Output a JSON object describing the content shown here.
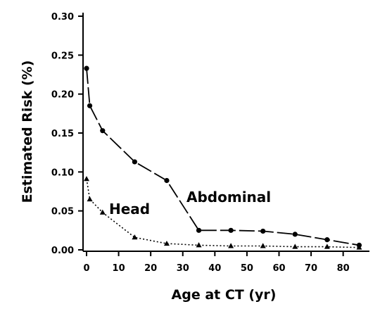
{
  "chart_data": {
    "type": "line",
    "title": "",
    "xlabel": "Age at CT (yr)",
    "ylabel": "Estimated Risk (%)",
    "xlim": [
      0,
      86
    ],
    "ylim": [
      0,
      0.3
    ],
    "x_ticks": [
      0,
      10,
      20,
      30,
      40,
      50,
      60,
      70,
      80
    ],
    "y_ticks": [
      "0.00",
      "0.05",
      "0.10",
      "0.15",
      "0.20",
      "0.25",
      "0.30"
    ],
    "grid": false,
    "legend": "none",
    "series": [
      {
        "name": "Abdominal",
        "marker": "circle",
        "line_style": "long-dash",
        "color": "#000000",
        "x": [
          0,
          1,
          5,
          15,
          25,
          35,
          45,
          55,
          65,
          75,
          85
        ],
        "y": [
          0.233,
          0.185,
          0.153,
          0.113,
          0.089,
          0.025,
          0.025,
          0.024,
          0.02,
          0.013,
          0.006
        ]
      },
      {
        "name": "Head",
        "marker": "triangle",
        "line_style": "dotted",
        "color": "#000000",
        "x": [
          0,
          1,
          5,
          15,
          25,
          35,
          45,
          55,
          65,
          75,
          85
        ],
        "y": [
          0.091,
          0.065,
          0.048,
          0.016,
          0.008,
          0.006,
          0.005,
          0.005,
          0.004,
          0.004,
          0.003
        ]
      }
    ]
  }
}
